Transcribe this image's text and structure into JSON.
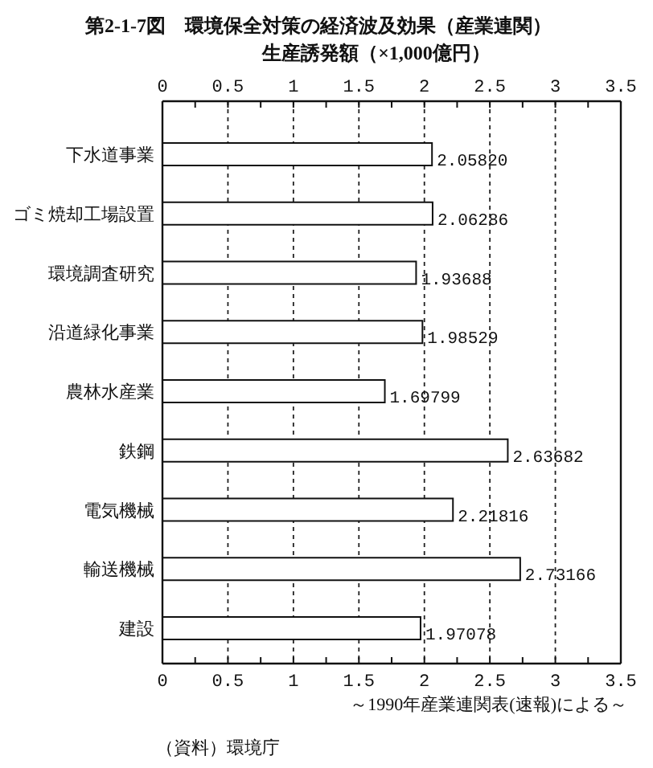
{
  "chart_data": {
    "type": "bar",
    "orientation": "horizontal",
    "title": "第2-1-7図　環境保全対策の経済波及効果（産業連関）",
    "subtitle": "生産誘発額（×1,000億円）",
    "categories": [
      "下水道事業",
      "ゴミ焼却工場設置",
      "環境調査研究",
      "沿道緑化事業",
      "農林水産業",
      "鉄鋼",
      "電気機械",
      "輸送機械",
      "建設"
    ],
    "values": [
      2.0582,
      2.06286,
      1.93688,
      1.98529,
      1.69799,
      2.63682,
      2.21816,
      2.73166,
      1.97078
    ],
    "value_labels": [
      "2.05820",
      "2.06286",
      "1.93688",
      "1.98529",
      "1.69799",
      "2.63682",
      "2.21816",
      "2.73166",
      "1.97078"
    ],
    "color": "#ffffff",
    "xlim": [
      0,
      3.5
    ],
    "xticks": [
      0,
      {
        "value": 0.25,
        "label": null
      },
      0.5,
      {
        "value": 0.75,
        "label": null
      },
      1,
      {
        "value": 1.25,
        "label": null
      },
      1.5,
      {
        "value": 1.75,
        "label": null
      },
      2,
      {
        "value": 2.25,
        "label": null
      },
      2.5,
      {
        "value": 2.75,
        "label": null
      },
      3,
      {
        "value": 3.25,
        "label": null
      },
      3.5
    ],
    "x2lim": [
      0,
      3.5
    ],
    "x2ticks": [
      0,
      {
        "value": 0.25,
        "label": null
      },
      0.5,
      {
        "value": 0.75,
        "label": null
      },
      1,
      {
        "value": 1.25,
        "label": null
      },
      1.5,
      {
        "value": 1.75,
        "label": null
      },
      2,
      {
        "value": 2.25,
        "label": null
      },
      2.5,
      {
        "value": 2.75,
        "label": null
      },
      3,
      {
        "value": 3.25,
        "label": null
      },
      3.5
    ],
    "grid": "x",
    "annotations": [
      "～1990年産業連関表(速報)による～",
      "（資料）環境庁"
    ]
  }
}
